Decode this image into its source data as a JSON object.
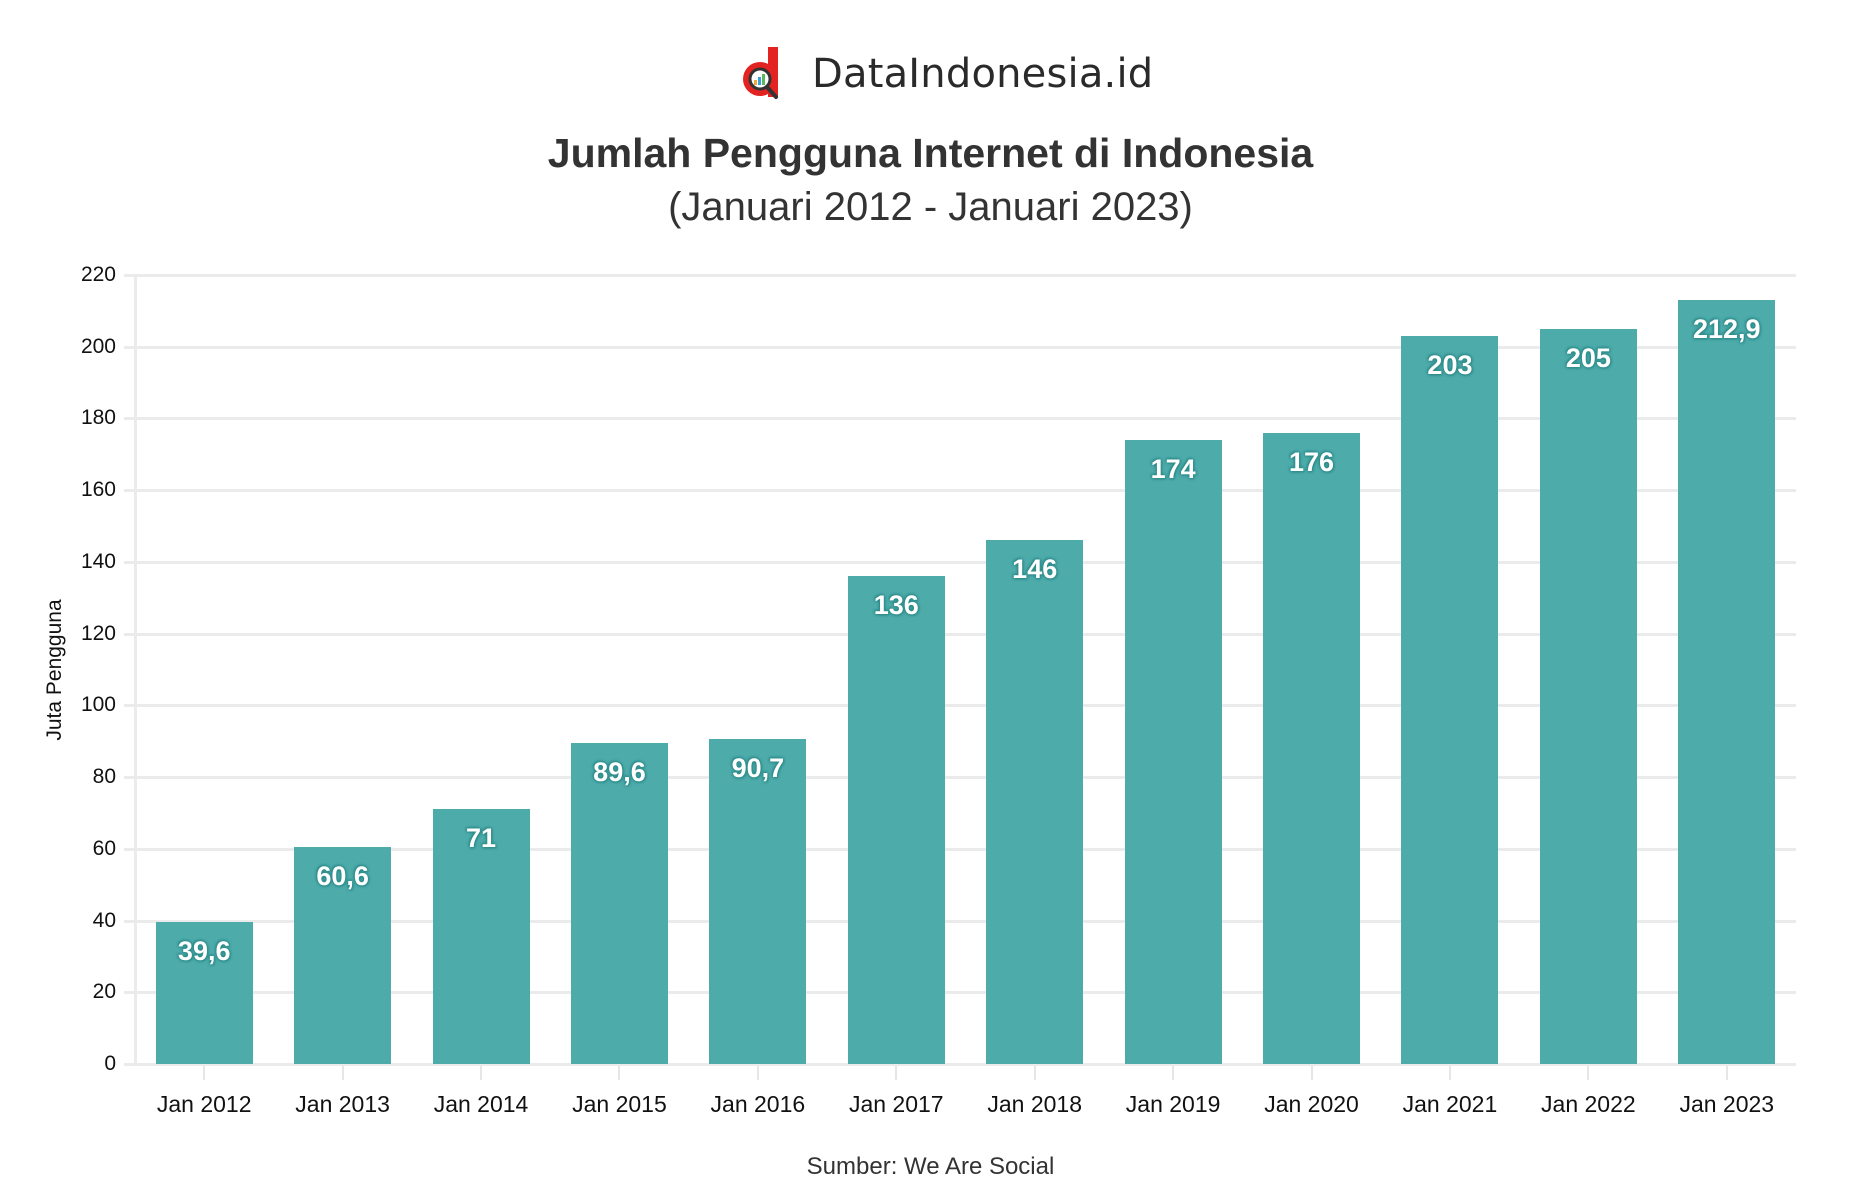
{
  "brand": {
    "name": "DataIndonesia.id",
    "logo_icon": "d-magnifier-chart-logo",
    "colors": {
      "red": "#e32222",
      "dark": "#2a2a2a"
    }
  },
  "header": {
    "title": "Jumlah Pengguna Internet di Indonesia",
    "subtitle": "(Januari 2012 - Januari 2023)"
  },
  "footer": {
    "source": "Sumber: We Are Social"
  },
  "colors": {
    "bar": "#4dabaa",
    "label_halo": "#2f8d8b",
    "grid": "#ebebeb"
  },
  "chart_data": {
    "type": "bar",
    "title": "Jumlah Pengguna Internet di Indonesia",
    "subtitle": "(Januari 2012 - Januari 2023)",
    "xlabel": "",
    "ylabel": "Juta Pengguna",
    "ylim": [
      0,
      220
    ],
    "yticks": [
      0,
      20,
      40,
      60,
      80,
      100,
      120,
      140,
      160,
      180,
      200,
      220
    ],
    "grid": true,
    "legend": null,
    "categories": [
      "Jan 2012",
      "Jan 2013",
      "Jan 2014",
      "Jan 2015",
      "Jan 2016",
      "Jan 2017",
      "Jan 2018",
      "Jan 2019",
      "Jan 2020",
      "Jan 2021",
      "Jan 2022",
      "Jan 2023"
    ],
    "values": [
      39.6,
      60.6,
      71,
      89.6,
      90.7,
      136,
      146,
      174,
      176,
      203,
      205,
      212.9
    ],
    "value_labels": [
      "39,6",
      "60,6",
      "71",
      "89,6",
      "90,7",
      "136",
      "146",
      "174",
      "176",
      "203",
      "205",
      "212,9"
    ],
    "source": "Sumber: We Are Social"
  }
}
